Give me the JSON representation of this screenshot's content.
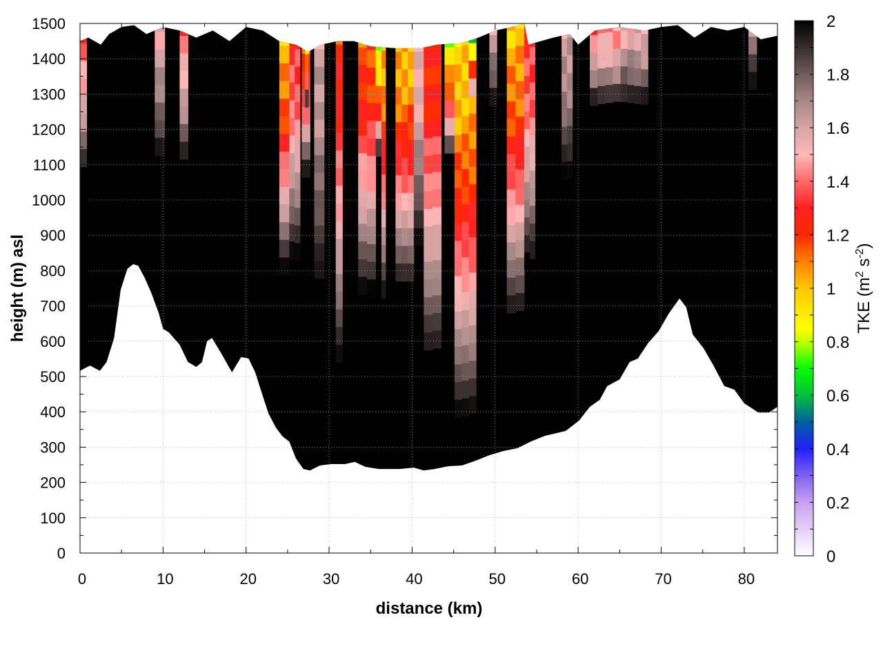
{
  "chart_data": {
    "type": "heatmap",
    "title": "",
    "xlabel": "distance (km)",
    "ylabel": "height (m) asl",
    "colorbar_label": {
      "base": "TKE (m",
      "sup1": "2",
      "mid": " s",
      "sup2": "-2",
      "end": ")"
    },
    "xlim": [
      0,
      84
    ],
    "ylim": [
      0,
      1500
    ],
    "clim": [
      0,
      2
    ],
    "grid": true,
    "xticks": [
      0,
      10,
      20,
      30,
      40,
      50,
      60,
      70,
      80
    ],
    "yticks": [
      0,
      100,
      200,
      300,
      400,
      500,
      600,
      700,
      800,
      900,
      1000,
      1100,
      1200,
      1300,
      1400,
      1500
    ],
    "colorbar_ticks": [
      "0",
      "0.2",
      "0.4",
      "0.6",
      "0.8",
      "1",
      "1.2",
      "1.4",
      "1.6",
      "1.8",
      "2"
    ],
    "colormap": [
      [
        0,
        "#ffffff"
      ],
      [
        0.2,
        "#c8a0f0"
      ],
      [
        0.3,
        "#8060f0"
      ],
      [
        0.4,
        "#2020ff"
      ],
      [
        0.5,
        "#0060a0"
      ],
      [
        0.6,
        "#00c040"
      ],
      [
        0.7,
        "#00ff00"
      ],
      [
        0.8,
        "#c0ff00"
      ],
      [
        0.85,
        "#ffff00"
      ],
      [
        1.0,
        "#ffc800"
      ],
      [
        1.1,
        "#ff8000"
      ],
      [
        1.2,
        "#ff2800"
      ],
      [
        1.3,
        "#ff2020"
      ],
      [
        1.4,
        "#ff6868"
      ],
      [
        1.5,
        "#ffb8b8"
      ],
      [
        1.6,
        "#d8a4a4"
      ],
      [
        1.7,
        "#a88888"
      ],
      [
        1.8,
        "#705a5a"
      ],
      [
        1.9,
        "#382e2e"
      ],
      [
        2.0,
        "#000000"
      ]
    ],
    "terrain_bottom": [
      [
        0,
        516
      ],
      [
        1.2,
        531
      ],
      [
        2.4,
        516
      ],
      [
        3.2,
        541
      ],
      [
        4.1,
        609
      ],
      [
        4.9,
        746
      ],
      [
        5.7,
        805
      ],
      [
        6.4,
        818
      ],
      [
        7,
        814
      ],
      [
        7.8,
        779
      ],
      [
        8.6,
        736
      ],
      [
        9.5,
        678
      ],
      [
        10,
        635
      ],
      [
        10.7,
        625
      ],
      [
        12,
        590
      ],
      [
        13,
        541
      ],
      [
        14,
        527
      ],
      [
        14.7,
        541
      ],
      [
        15.3,
        600
      ],
      [
        15.9,
        609
      ],
      [
        16.9,
        570
      ],
      [
        18.3,
        512
      ],
      [
        19.4,
        555
      ],
      [
        20.3,
        551
      ],
      [
        21.1,
        512
      ],
      [
        21.9,
        453
      ],
      [
        22.7,
        395
      ],
      [
        23.6,
        355
      ],
      [
        24.4,
        330
      ],
      [
        25.2,
        316
      ],
      [
        26,
        268
      ],
      [
        26.9,
        238
      ],
      [
        27.7,
        234
      ],
      [
        28.9,
        248
      ],
      [
        30.2,
        252
      ],
      [
        31.9,
        252
      ],
      [
        33.1,
        258
      ],
      [
        34.4,
        244
      ],
      [
        36,
        238
      ],
      [
        38.5,
        238
      ],
      [
        40.2,
        242
      ],
      [
        41.4,
        234
      ],
      [
        42.7,
        238
      ],
      [
        44.4,
        246
      ],
      [
        46,
        248
      ],
      [
        47.7,
        262
      ],
      [
        49.3,
        277
      ],
      [
        51,
        289
      ],
      [
        52.7,
        297
      ],
      [
        54.3,
        316
      ],
      [
        56,
        332
      ],
      [
        58.5,
        346
      ],
      [
        60.1,
        375
      ],
      [
        61.4,
        414
      ],
      [
        62.6,
        434
      ],
      [
        63.5,
        473
      ],
      [
        65,
        492
      ],
      [
        66.2,
        541
      ],
      [
        67.2,
        551
      ],
      [
        68.4,
        594
      ],
      [
        69.7,
        629
      ],
      [
        70.9,
        678
      ],
      [
        72.2,
        721
      ],
      [
        73,
        697
      ],
      [
        73.8,
        619
      ],
      [
        75.1,
        580
      ],
      [
        76.3,
        531
      ],
      [
        77.6,
        473
      ],
      [
        78.8,
        463
      ],
      [
        80,
        424
      ],
      [
        81.7,
        398
      ],
      [
        83,
        398
      ],
      [
        84,
        414
      ]
    ],
    "model_top": [
      [
        0,
        1450
      ],
      [
        1,
        1460
      ],
      [
        2.5,
        1440
      ],
      [
        3.5,
        1470
      ],
      [
        5,
        1490
      ],
      [
        6.5,
        1495
      ],
      [
        8,
        1470
      ],
      [
        10,
        1490
      ],
      [
        12,
        1480
      ],
      [
        14,
        1460
      ],
      [
        16,
        1480
      ],
      [
        18,
        1450
      ],
      [
        20,
        1490
      ],
      [
        22,
        1480
      ],
      [
        24,
        1450
      ],
      [
        26,
        1440
      ],
      [
        27.5,
        1420
      ],
      [
        29,
        1440
      ],
      [
        31,
        1450
      ],
      [
        33,
        1450
      ],
      [
        35,
        1435
      ],
      [
        38,
        1430
      ],
      [
        41,
        1430
      ],
      [
        43,
        1440
      ],
      [
        46,
        1445
      ],
      [
        48,
        1460
      ],
      [
        50,
        1480
      ],
      [
        52,
        1490
      ],
      [
        53.5,
        1500
      ],
      [
        54,
        1440
      ],
      [
        57,
        1460
      ],
      [
        59,
        1470
      ],
      [
        60,
        1440
      ],
      [
        62,
        1480
      ],
      [
        65,
        1490
      ],
      [
        68,
        1480
      ],
      [
        70,
        1490
      ],
      [
        72,
        1495
      ],
      [
        74,
        1460
      ],
      [
        76,
        1490
      ],
      [
        78,
        1480
      ],
      [
        80,
        1490
      ],
      [
        82,
        1455
      ],
      [
        84,
        1465
      ]
    ],
    "background_tke": 2.0,
    "tke_plumes": [
      {
        "x0": 0,
        "x1": 0.8,
        "bottom": 1100,
        "tke": 1.35
      },
      {
        "x0": 9,
        "x1": 10.2,
        "bottom": 1150,
        "tke": 1.55
      },
      {
        "x0": 12,
        "x1": 13,
        "bottom": 1130,
        "tke": 1.4
      },
      {
        "x0": 24,
        "x1": 25.2,
        "bottom": 830,
        "tke": 1.0
      },
      {
        "x0": 25.2,
        "x1": 26.5,
        "bottom": 870,
        "tke": 1.3
      },
      {
        "x0": 26.7,
        "x1": 27.7,
        "bottom": 1100,
        "tke": 1.1
      },
      {
        "x0": 27.1,
        "x1": 27.5,
        "bottom": 1300,
        "tke": 0.9
      },
      {
        "x0": 28.2,
        "x1": 29.4,
        "bottom": 780,
        "tke": 1.6
      },
      {
        "x0": 30.8,
        "x1": 31.6,
        "bottom": 570,
        "tke": 1.2
      },
      {
        "x0": 33.5,
        "x1": 35.6,
        "bottom": 770,
        "tke": 1.15
      },
      {
        "x0": 35.6,
        "x1": 36.3,
        "bottom": 1150,
        "tke": 0.75
      },
      {
        "x0": 36.3,
        "x1": 36.8,
        "bottom": 750,
        "tke": 1.0
      },
      {
        "x0": 38,
        "x1": 40.2,
        "bottom": 780,
        "tke": 1.0
      },
      {
        "x0": 40.2,
        "x1": 41.4,
        "bottom": 900,
        "tke": 1.5
      },
      {
        "x0": 41.4,
        "x1": 43.5,
        "bottom": 580,
        "tke": 1.2
      },
      {
        "x0": 43.9,
        "x1": 45.1,
        "bottom": 1150,
        "tke": 0.85
      },
      {
        "x0": 45.1,
        "x1": 47.7,
        "bottom": 420,
        "tke": 0.95
      },
      {
        "x0": 46.8,
        "x1": 47.7,
        "bottom": 1300,
        "tke": 0.7
      },
      {
        "x0": 49.3,
        "x1": 50.2,
        "bottom": 1300,
        "tke": 1.6
      },
      {
        "x0": 51.4,
        "x1": 53.5,
        "bottom": 700,
        "tke": 1.0
      },
      {
        "x0": 53.5,
        "x1": 54.8,
        "bottom": 850,
        "tke": 1.3
      },
      {
        "x0": 58,
        "x1": 59.3,
        "bottom": 1100,
        "tke": 1.6
      },
      {
        "x0": 61.4,
        "x1": 65.1,
        "bottom": 1300,
        "tke": 1.4
      },
      {
        "x0": 65.1,
        "x1": 68.4,
        "bottom": 1300,
        "tke": 1.55
      },
      {
        "x0": 80.5,
        "x1": 81.5,
        "bottom": 1350,
        "tke": 1.7
      }
    ]
  }
}
